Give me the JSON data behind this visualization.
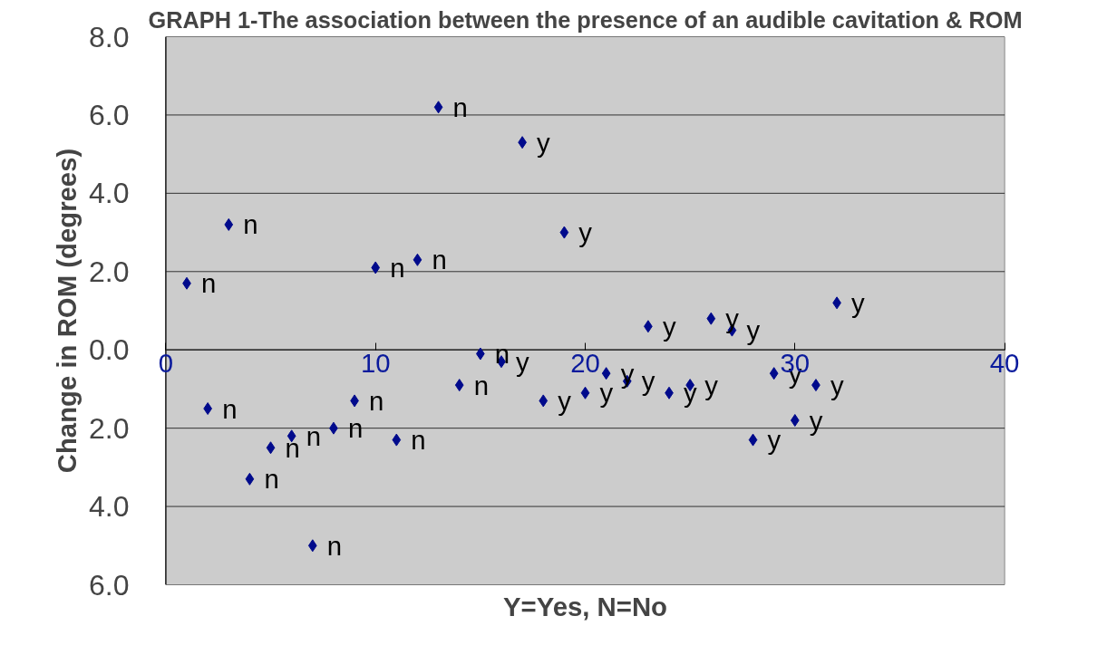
{
  "chart_data": {
    "type": "scatter",
    "title": "GRAPH 1-The association between the presence of an audible cavitation & ROM",
    "xlabel": "Y=Yes, N=No",
    "ylabel": "Change in ROM (degrees)",
    "x": [
      1,
      2,
      3,
      4,
      5,
      6,
      7,
      8,
      9,
      10,
      11,
      12,
      13,
      14,
      15,
      16,
      17,
      18,
      19,
      20,
      21,
      22,
      23,
      24,
      25,
      26,
      27,
      28,
      29,
      30,
      31,
      32
    ],
    "values": [
      1.7,
      -1.5,
      3.2,
      -3.3,
      -2.5,
      -2.2,
      -5.0,
      -2.0,
      -1.3,
      2.1,
      -2.3,
      2.3,
      6.2,
      -0.9,
      -0.1,
      -0.3,
      5.3,
      -1.3,
      3.0,
      -1.1,
      -0.6,
      -0.8,
      0.6,
      -1.1,
      -0.9,
      0.8,
      0.5,
      -2.3,
      -0.6,
      -1.8,
      -0.9,
      1.2
    ],
    "value_labels": [
      "n",
      "n",
      "n",
      "n",
      "n",
      "n",
      "n",
      "n",
      "n",
      "n",
      "n",
      "n",
      "n",
      "n",
      "n",
      "y",
      "y",
      "y",
      "y",
      "y",
      "y",
      "y",
      "y",
      "y",
      "y",
      "y",
      "y",
      "y",
      "y",
      "y",
      "y",
      "y"
    ],
    "color": "#000a8c",
    "marker": "diamond",
    "grid": "y",
    "xlim": [
      0,
      40
    ],
    "xticks": [
      0,
      10,
      20,
      30,
      40
    ],
    "ylim": [
      -6,
      8
    ],
    "yticks": [
      {
        "value": -6,
        "label": "6.0"
      },
      {
        "value": -4,
        "label": "4.0"
      },
      {
        "value": -2,
        "label": "2.0"
      },
      {
        "value": 0,
        "label": "0.0"
      },
      {
        "value": 2,
        "label": "2.0"
      },
      {
        "value": 4,
        "label": "4.0"
      },
      {
        "value": 6,
        "label": "6.0"
      },
      {
        "value": 8,
        "label": "8.0"
      }
    ]
  }
}
